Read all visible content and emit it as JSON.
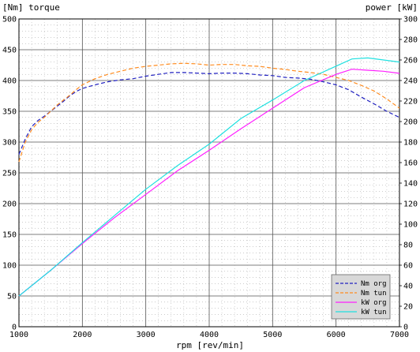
{
  "chart_data": {
    "type": "line",
    "title": "",
    "left_axis_label": "[Nm] torque",
    "right_axis_label": "power [kW]",
    "xlabel": "rpm [rev/min]",
    "x_ticks": [
      1000,
      2000,
      3000,
      4000,
      5000,
      6000,
      7000
    ],
    "xlim": [
      1000,
      7000
    ],
    "ylim_left": [
      0,
      500
    ],
    "y_ticks_left": [
      0,
      50,
      100,
      150,
      200,
      250,
      300,
      350,
      400,
      450,
      500
    ],
    "ylim_right": [
      0,
      300
    ],
    "y_ticks_right": [
      0,
      20,
      40,
      60,
      80,
      100,
      120,
      140,
      160,
      180,
      200,
      220,
      240,
      260,
      280,
      300
    ],
    "grid": true,
    "legend_position": "bottom-right",
    "series": [
      {
        "name": "Nm org",
        "axis": "left",
        "color": "#2020c0",
        "dash": "dashed",
        "x": [
          1000,
          1100,
          1200,
          1300,
          1400,
          1500,
          1600,
          1700,
          1800,
          1900,
          2000,
          2200,
          2400,
          2600,
          2800,
          3000,
          3200,
          3400,
          3600,
          3800,
          4000,
          4200,
          4400,
          4600,
          4800,
          5000,
          5200,
          5400,
          5600,
          5800,
          6000,
          6200,
          6400,
          6600,
          6800,
          7000
        ],
        "y": [
          280,
          305,
          325,
          335,
          342,
          350,
          358,
          366,
          375,
          382,
          387,
          393,
          398,
          401,
          403,
          407,
          410,
          413,
          413,
          412,
          411,
          412,
          412,
          411,
          409,
          408,
          405,
          404,
          402,
          398,
          393,
          385,
          373,
          362,
          350,
          340
        ]
      },
      {
        "name": "Nm tun",
        "axis": "left",
        "color": "#ff8c20",
        "dash": "dashed",
        "x": [
          1000,
          1100,
          1200,
          1300,
          1400,
          1500,
          1600,
          1700,
          1800,
          1900,
          2000,
          2200,
          2400,
          2600,
          2800,
          3000,
          3200,
          3400,
          3600,
          3800,
          4000,
          4200,
          4400,
          4600,
          4800,
          5000,
          5200,
          5400,
          5600,
          5800,
          6000,
          6200,
          6400,
          6600,
          6800,
          7000
        ],
        "y": [
          268,
          300,
          320,
          332,
          340,
          350,
          360,
          368,
          376,
          385,
          393,
          403,
          410,
          415,
          420,
          423,
          425,
          427,
          428,
          427,
          425,
          426,
          426,
          424,
          423,
          420,
          418,
          415,
          413,
          410,
          405,
          400,
          392,
          383,
          370,
          355
        ]
      },
      {
        "name": "kW org",
        "axis": "right",
        "color": "#ff20ff",
        "dash": "solid",
        "x": [
          1000,
          1500,
          2000,
          2500,
          3000,
          3500,
          4000,
          4500,
          5000,
          5500,
          6000,
          6250,
          6500,
          6750,
          7000
        ],
        "y": [
          30,
          55,
          81,
          106,
          129,
          152,
          172,
          193,
          213,
          233,
          246,
          251,
          250,
          249,
          247
        ]
      },
      {
        "name": "kW tun",
        "axis": "right",
        "color": "#20e0e0",
        "dash": "solid",
        "x": [
          1000,
          1500,
          2000,
          2500,
          3000,
          3500,
          4000,
          4500,
          5000,
          5500,
          6000,
          6250,
          6500,
          6750,
          7000
        ],
        "y": [
          30,
          55,
          82,
          108,
          134,
          157,
          178,
          203,
          221,
          240,
          254,
          261,
          262,
          260,
          258
        ]
      }
    ]
  }
}
